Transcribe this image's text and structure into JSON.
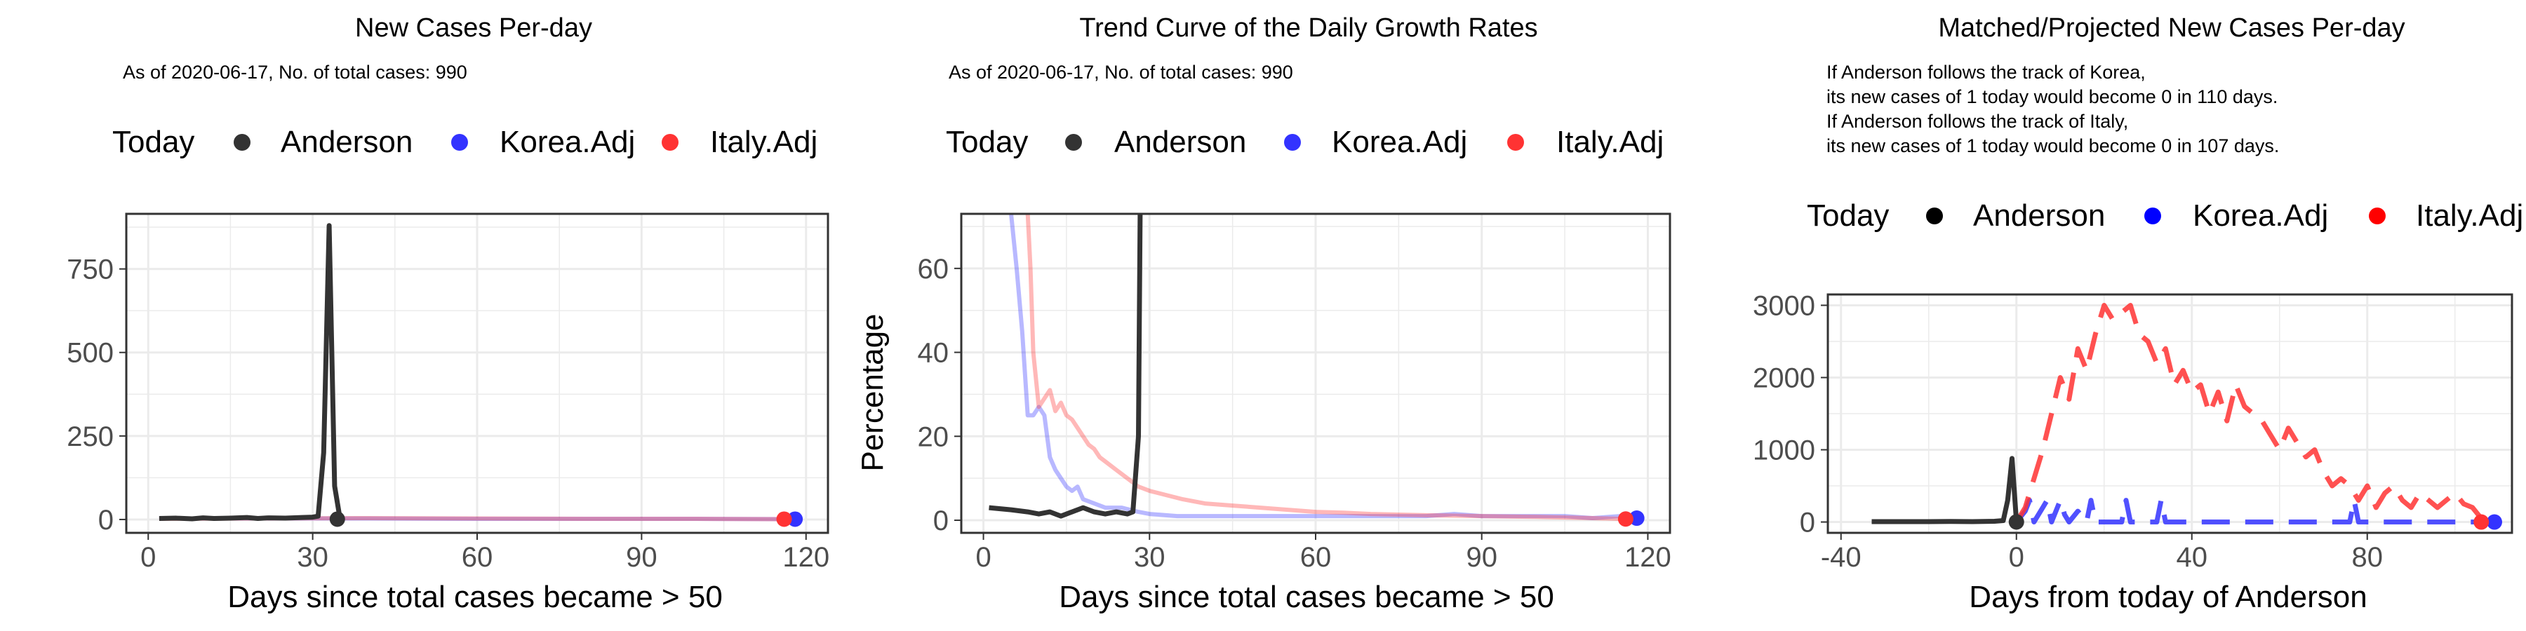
{
  "panels": [
    {
      "title": "New Cases Per-day",
      "subtitle_lines": [
        "As of 2020-06-17, No. of total cases: 990"
      ],
      "legend": {
        "title": "Today",
        "items": [
          "Anderson",
          "Korea.Adj",
          "Italy.Adj"
        ]
      },
      "xlabel": "Days since total cases became > 50",
      "ylabel": ""
    },
    {
      "title": "Trend Curve of the Daily Growth Rates",
      "subtitle_lines": [
        "As of 2020-06-17, No. of total cases: 990"
      ],
      "legend": {
        "title": "Today",
        "items": [
          "Anderson",
          "Korea.Adj",
          "Italy.Adj"
        ]
      },
      "xlabel": "Days since total cases became > 50",
      "ylabel": "Percentage"
    },
    {
      "title": "Matched/Projected New Cases Per-day",
      "subtitle_lines": [
        "If Anderson follows the track of Korea,",
        "its new cases of 1 today would become 0 in 110 days.",
        "If Anderson follows the track of Italy,",
        "its new cases of 1 today would become 0 in 107 days."
      ],
      "legend": {
        "title": "Today",
        "items": [
          "Anderson",
          "Korea.Adj",
          "Italy.Adj"
        ]
      },
      "xlabel": "Days from today of Anderson",
      "ylabel": ""
    }
  ],
  "colors": {
    "anderson": "#333333",
    "korea": "#3333ff",
    "italy": "#ff3333",
    "grid": "#ebebeb",
    "border": "#333333"
  },
  "chart_data": [
    {
      "type": "line",
      "title": "New Cases Per-day",
      "xlabel": "Days since total cases became > 50",
      "ylabel": "",
      "xlim": [
        -4,
        124
      ],
      "ylim": [
        -40,
        915
      ],
      "xticks": [
        0,
        30,
        60,
        90,
        120
      ],
      "yticks": [
        0,
        250,
        500,
        750
      ],
      "series": [
        {
          "name": "Anderson",
          "x": [
            2,
            5,
            8,
            10,
            12,
            15,
            18,
            20,
            22,
            25,
            28,
            30,
            31,
            32,
            33,
            34,
            35
          ],
          "y": [
            3,
            4,
            2,
            5,
            3,
            4,
            6,
            3,
            5,
            4,
            6,
            7,
            10,
            200,
            880,
            100,
            1
          ]
        },
        {
          "name": "Korea.Adj",
          "x": [
            2,
            20,
            40,
            60,
            80,
            100,
            118
          ],
          "y": [
            3,
            3,
            3,
            2,
            2,
            2,
            1
          ]
        },
        {
          "name": "Italy.Adj",
          "x": [
            2,
            20,
            40,
            60,
            80,
            100,
            116
          ],
          "y": [
            2,
            3,
            4,
            3,
            2,
            2,
            1
          ]
        }
      ],
      "today_points": [
        {
          "name": "Anderson",
          "x": 34.5,
          "y": 1
        },
        {
          "name": "Korea.Adj",
          "x": 118,
          "y": 1
        },
        {
          "name": "Italy.Adj",
          "x": 116,
          "y": 1
        }
      ]
    },
    {
      "type": "line",
      "title": "Trend Curve of the Daily Growth Rates",
      "xlabel": "Days since total cases became > 50",
      "ylabel": "Percentage",
      "xlim": [
        -4,
        124
      ],
      "ylim": [
        -3,
        73
      ],
      "xticks": [
        0,
        30,
        60,
        90,
        120
      ],
      "yticks": [
        0,
        20,
        40,
        60
      ],
      "series": [
        {
          "name": "Anderson",
          "x": [
            1,
            5,
            8,
            10,
            12,
            14,
            16,
            18,
            20,
            22,
            24,
            26,
            27,
            28,
            28.3
          ],
          "y": [
            3,
            2.5,
            2,
            1.5,
            2,
            1,
            2,
            3,
            2,
            1.5,
            2,
            1.5,
            2,
            20,
            73
          ]
        },
        {
          "name": "Korea.Adj",
          "x": [
            5,
            6,
            7,
            8,
            9,
            10,
            11,
            12,
            13,
            14,
            15,
            16,
            17,
            18,
            20,
            22,
            25,
            28,
            30,
            35,
            40,
            50,
            60,
            70,
            80,
            85,
            90,
            95,
            100,
            105,
            110,
            115,
            118
          ],
          "y": [
            73,
            60,
            45,
            25,
            25,
            27,
            25,
            15,
            12,
            10,
            8,
            7,
            8,
            5,
            4,
            3,
            3,
            2,
            1.5,
            1,
            1,
            1,
            1,
            1,
            1,
            1.5,
            1,
            1,
            1,
            1,
            0.5,
            1,
            0.5
          ]
        },
        {
          "name": "Italy.Adj",
          "x": [
            8,
            8.5,
            9,
            10,
            11,
            12,
            13,
            14,
            15,
            16,
            17,
            18,
            19,
            20,
            21,
            22,
            24,
            26,
            28,
            30,
            33,
            36,
            40,
            45,
            50,
            55,
            60,
            65,
            70,
            80,
            90,
            100,
            110,
            116
          ],
          "y": [
            73,
            60,
            40,
            27,
            29,
            31,
            26,
            28,
            25,
            24,
            22,
            20,
            18,
            17,
            15,
            14,
            12,
            10,
            8,
            7,
            6,
            5,
            4,
            3.5,
            3,
            2.5,
            2,
            1.8,
            1.5,
            1.2,
            1,
            0.8,
            0.5,
            0.3
          ]
        }
      ],
      "today_points": [
        {
          "name": "Korea.Adj",
          "x": 118,
          "y": 0.5
        },
        {
          "name": "Italy.Adj",
          "x": 116,
          "y": 0.3
        }
      ]
    },
    {
      "type": "line",
      "title": "Matched/Projected New Cases Per-day",
      "xlabel": "Days from today of Anderson",
      "ylabel": "",
      "xlim": [
        -43,
        113
      ],
      "ylim": [
        -150,
        3150
      ],
      "xticks": [
        -40,
        0,
        40,
        80
      ],
      "yticks": [
        0,
        1000,
        2000,
        3000
      ],
      "series": [
        {
          "name": "Anderson",
          "x": [
            -33,
            -30,
            -25,
            -20,
            -15,
            -10,
            -5,
            -3,
            -2,
            -1,
            0
          ],
          "y": [
            5,
            5,
            5,
            5,
            8,
            5,
            10,
            20,
            300,
            880,
            1
          ]
        },
        {
          "name": "Korea.Adj",
          "x": [
            0,
            2,
            3,
            4,
            6,
            7,
            8,
            10,
            11,
            12,
            14,
            16,
            17,
            18,
            20,
            24,
            25,
            26,
            28,
            32,
            33,
            34,
            36,
            40,
            50,
            60,
            70,
            76,
            77,
            78,
            80,
            90,
            100,
            108
          ],
          "y": [
            0,
            150,
            300,
            0,
            200,
            300,
            0,
            300,
            100,
            0,
            150,
            0,
            300,
            0,
            0,
            0,
            300,
            0,
            0,
            0,
            300,
            0,
            0,
            0,
            0,
            0,
            0,
            0,
            300,
            0,
            0,
            0,
            0,
            0
          ]
        },
        {
          "name": "Italy.Adj",
          "x": [
            0,
            2,
            4,
            6,
            8,
            10,
            12,
            14,
            16,
            18,
            20,
            22,
            24,
            26,
            28,
            30,
            32,
            34,
            36,
            38,
            40,
            42,
            44,
            46,
            48,
            50,
            52,
            54,
            56,
            58,
            60,
            62,
            64,
            66,
            68,
            70,
            72,
            74,
            76,
            78,
            80,
            82,
            84,
            86,
            88,
            90,
            92,
            94,
            96,
            98,
            100,
            102,
            104,
            106
          ],
          "y": [
            0,
            200,
            600,
            1000,
            1500,
            2000,
            1700,
            2400,
            2100,
            2600,
            3000,
            2800,
            2900,
            3000,
            2600,
            2500,
            2200,
            2400,
            1900,
            2100,
            1800,
            1900,
            1500,
            1800,
            1400,
            1900,
            1600,
            1500,
            1400,
            1200,
            1000,
            1300,
            1100,
            900,
            1000,
            700,
            500,
            600,
            500,
            300,
            500,
            200,
            400,
            500,
            300,
            200,
            400,
            300,
            200,
            300,
            400,
            250,
            200,
            50
          ]
        }
      ],
      "today_points": [
        {
          "name": "Anderson",
          "x": 0,
          "y": 1
        },
        {
          "name": "Korea.Adj",
          "x": 109,
          "y": 0
        },
        {
          "name": "Italy.Adj",
          "x": 106,
          "y": 0
        }
      ]
    }
  ]
}
